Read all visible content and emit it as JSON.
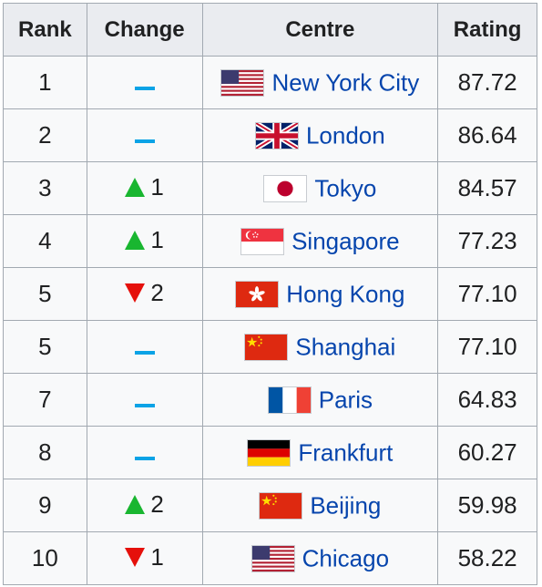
{
  "headers": {
    "rank": "Rank",
    "change": "Change",
    "centre": "Centre",
    "rating": "Rating"
  },
  "colors": {
    "up": "#19b630",
    "down": "#e5100b",
    "same": "#0ba3e6",
    "link": "#0645ad"
  },
  "rows": [
    {
      "rank": "1",
      "change_dir": "same",
      "change_value": "",
      "flag": "usa-flag",
      "centre": "New York City",
      "rating": "87.72"
    },
    {
      "rank": "2",
      "change_dir": "same",
      "change_value": "",
      "flag": "uk-flag",
      "centre": "London",
      "rating": "86.64"
    },
    {
      "rank": "3",
      "change_dir": "up",
      "change_value": "1",
      "flag": "japan-flag",
      "centre": "Tokyo",
      "rating": "84.57"
    },
    {
      "rank": "4",
      "change_dir": "up",
      "change_value": "1",
      "flag": "singapore-flag",
      "centre": "Singapore",
      "rating": "77.23"
    },
    {
      "rank": "5",
      "change_dir": "down",
      "change_value": "2",
      "flag": "hongkong-flag",
      "centre": "Hong Kong",
      "rating": "77.10"
    },
    {
      "rank": "5",
      "change_dir": "same",
      "change_value": "",
      "flag": "china-flag",
      "centre": "Shanghai",
      "rating": "77.10"
    },
    {
      "rank": "7",
      "change_dir": "same",
      "change_value": "",
      "flag": "france-flag",
      "centre": "Paris",
      "rating": "64.83"
    },
    {
      "rank": "8",
      "change_dir": "same",
      "change_value": "",
      "flag": "germany-flag",
      "centre": "Frankfurt",
      "rating": "60.27"
    },
    {
      "rank": "9",
      "change_dir": "up",
      "change_value": "2",
      "flag": "china-flag",
      "centre": "Beijing",
      "rating": "59.98"
    },
    {
      "rank": "10",
      "change_dir": "down",
      "change_value": "1",
      "flag": "usa-flag",
      "centre": "Chicago",
      "rating": "58.22"
    }
  ]
}
